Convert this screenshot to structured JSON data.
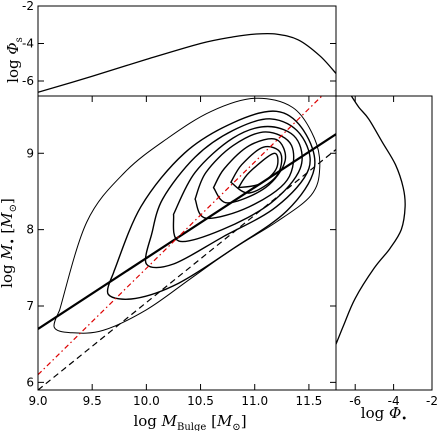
{
  "chart_data": [
    {
      "panel": "top",
      "type": "line",
      "ylabel": "log Φ_s",
      "ylim": [
        -6.8,
        -2
      ],
      "yticks": [
        "-2",
        "-4",
        "-6"
      ],
      "series": [
        {
          "x": [
            9.0,
            9.5,
            10.0,
            10.5,
            10.8,
            11.0,
            11.2,
            11.4,
            11.6,
            11.75
          ],
          "y": [
            -6.6,
            -5.75,
            -4.85,
            -4.0,
            -3.65,
            -3.5,
            -3.5,
            -3.8,
            -4.65,
            -5.6
          ]
        }
      ]
    },
    {
      "panel": "main",
      "type": "line",
      "xlabel": "log M_Bulge [M_⊙]",
      "ylabel": "log M_• [M_⊙]",
      "xlim": [
        9.0,
        11.75
      ],
      "ylim": [
        5.9,
        9.75
      ],
      "xticks": [
        "9.0",
        "9.5",
        "10.0",
        "10.5",
        "11.0",
        "11.5"
      ],
      "yticks": [
        "6",
        "7",
        "8",
        "9"
      ],
      "lines": [
        {
          "style": "solid-thick",
          "color": "#000000",
          "x": [
            9.0,
            11.75
          ],
          "y": [
            6.7,
            9.25
          ]
        },
        {
          "style": "dashed",
          "color": "#000000",
          "x": [
            9.0,
            11.75
          ],
          "y": [
            5.9,
            9.05
          ]
        },
        {
          "style": "dashdot",
          "color": "#dd0000",
          "x": [
            9.0,
            11.62
          ],
          "y": [
            6.1,
            9.75
          ]
        }
      ],
      "contours": [
        {
          "x": [
            9.2,
            9.15,
            9.3,
            9.6,
            10.0,
            10.4,
            10.8,
            11.2,
            11.52,
            11.6,
            11.55,
            11.35,
            11.0,
            10.6,
            10.2,
            9.8,
            9.45,
            9.2
          ],
          "y": [
            6.95,
            6.72,
            6.65,
            6.68,
            6.95,
            7.35,
            7.75,
            8.1,
            8.45,
            8.8,
            9.2,
            9.6,
            9.72,
            9.55,
            9.2,
            8.75,
            8.1,
            6.95
          ]
        },
        {
          "x": [
            9.7,
            9.65,
            9.9,
            10.3,
            10.8,
            11.3,
            11.55,
            11.45,
            11.2,
            10.8,
            10.35,
            9.95,
            9.7
          ],
          "y": [
            7.45,
            7.15,
            7.1,
            7.3,
            7.75,
            8.25,
            8.8,
            9.3,
            9.55,
            9.4,
            9.0,
            8.3,
            7.45
          ]
        },
        {
          "x": [
            10.05,
            10.0,
            10.25,
            10.7,
            11.2,
            11.5,
            11.42,
            11.15,
            10.8,
            10.45,
            10.15,
            10.05
          ],
          "y": [
            7.95,
            7.55,
            7.55,
            7.9,
            8.3,
            8.8,
            9.25,
            9.45,
            9.3,
            8.95,
            8.4,
            7.95
          ]
        },
        {
          "x": [
            10.25,
            10.3,
            10.7,
            11.15,
            11.42,
            11.38,
            11.12,
            10.8,
            10.45,
            10.25
          ],
          "y": [
            8.2,
            7.85,
            8.0,
            8.35,
            8.8,
            9.2,
            9.35,
            9.2,
            8.75,
            8.2
          ]
        },
        {
          "x": [
            10.45,
            10.55,
            10.95,
            11.3,
            11.34,
            11.1,
            10.8,
            10.55,
            10.45
          ],
          "y": [
            8.4,
            8.15,
            8.3,
            8.65,
            9.1,
            9.28,
            9.1,
            8.75,
            8.4
          ]
        },
        {
          "x": [
            10.62,
            10.75,
            11.1,
            11.28,
            11.2,
            10.95,
            10.72,
            10.62
          ],
          "y": [
            8.55,
            8.35,
            8.55,
            8.9,
            9.18,
            9.1,
            8.8,
            8.55
          ]
        },
        {
          "x": [
            10.78,
            10.95,
            11.2,
            11.24,
            11.08,
            10.88,
            10.78
          ],
          "y": [
            8.62,
            8.48,
            8.7,
            9.0,
            9.08,
            8.85,
            8.62
          ]
        },
        {
          "x": [
            10.85,
            11.05,
            11.2,
            11.18,
            10.95,
            10.85
          ],
          "y": [
            8.55,
            8.6,
            8.8,
            9.0,
            8.75,
            8.55
          ]
        }
      ]
    },
    {
      "panel": "right",
      "type": "line",
      "xlabel": "log Φ_•",
      "xlim": [
        -7,
        -2
      ],
      "xticks": [
        "-6",
        "-4",
        "-2"
      ],
      "series": [
        {
          "x": [
            -7.0,
            -6.6,
            -6.0,
            -5.0,
            -4.2,
            -3.6,
            -3.4,
            -3.5,
            -3.9,
            -4.6,
            -5.3,
            -5.8,
            -6.2
          ],
          "y": [
            6.5,
            6.75,
            7.1,
            7.5,
            7.75,
            8.0,
            8.3,
            8.55,
            8.85,
            9.15,
            9.45,
            9.6,
            9.75
          ]
        }
      ]
    }
  ]
}
